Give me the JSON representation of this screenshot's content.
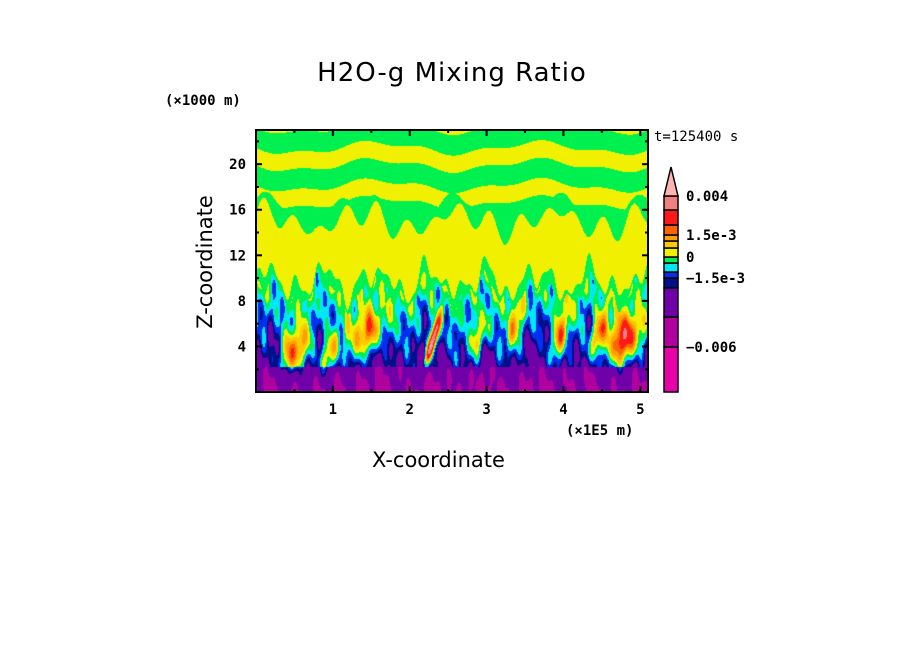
{
  "chart_data": {
    "type": "heatmap",
    "subtype": "filled-contour",
    "title": "H2O-g Mixing Ratio",
    "xlabel": "X-coordinate",
    "ylabel": "Z-coordinate",
    "x_unit": "(×1E5 m)",
    "y_unit": "(×1000 m)",
    "annotation": "t=125400 s",
    "xlim": [
      0,
      5.1
    ],
    "ylim": [
      0,
      23
    ],
    "xticks": [
      1,
      2,
      3,
      4,
      5
    ],
    "xtick_labels": [
      "1",
      "2",
      "3",
      "4",
      "5"
    ],
    "yticks": [
      4,
      8,
      12,
      16,
      20
    ],
    "ytick_labels": [
      "4",
      "8",
      "12",
      "16",
      "20"
    ],
    "colorbar": {
      "levels": [
        -0.006,
        -0.004,
        -0.002,
        -0.0015,
        -0.001,
        -0.0005,
        0,
        0.0005,
        0.001,
        0.0015,
        0.002,
        0.003,
        0.004
      ],
      "colors": [
        "#e800a8",
        "#b000a0",
        "#7000a8",
        "#001088",
        "#0030f0",
        "#00e8f8",
        "#00f050",
        "#f0f000",
        "#ffc800",
        "#ffa000",
        "#ff6400",
        "#ff1818",
        "#f08080",
        "#ffb4b4"
      ],
      "labels": [
        {
          "value": 0.004,
          "text": "0.004"
        },
        {
          "value": 0.0015,
          "text": "1.5e-3"
        },
        {
          "value": 0,
          "text": "0"
        },
        {
          "value": -0.0015,
          "text": "−1.5e-3"
        },
        {
          "value": -0.006,
          "text": "−0.006"
        }
      ],
      "extend": "max"
    }
  }
}
